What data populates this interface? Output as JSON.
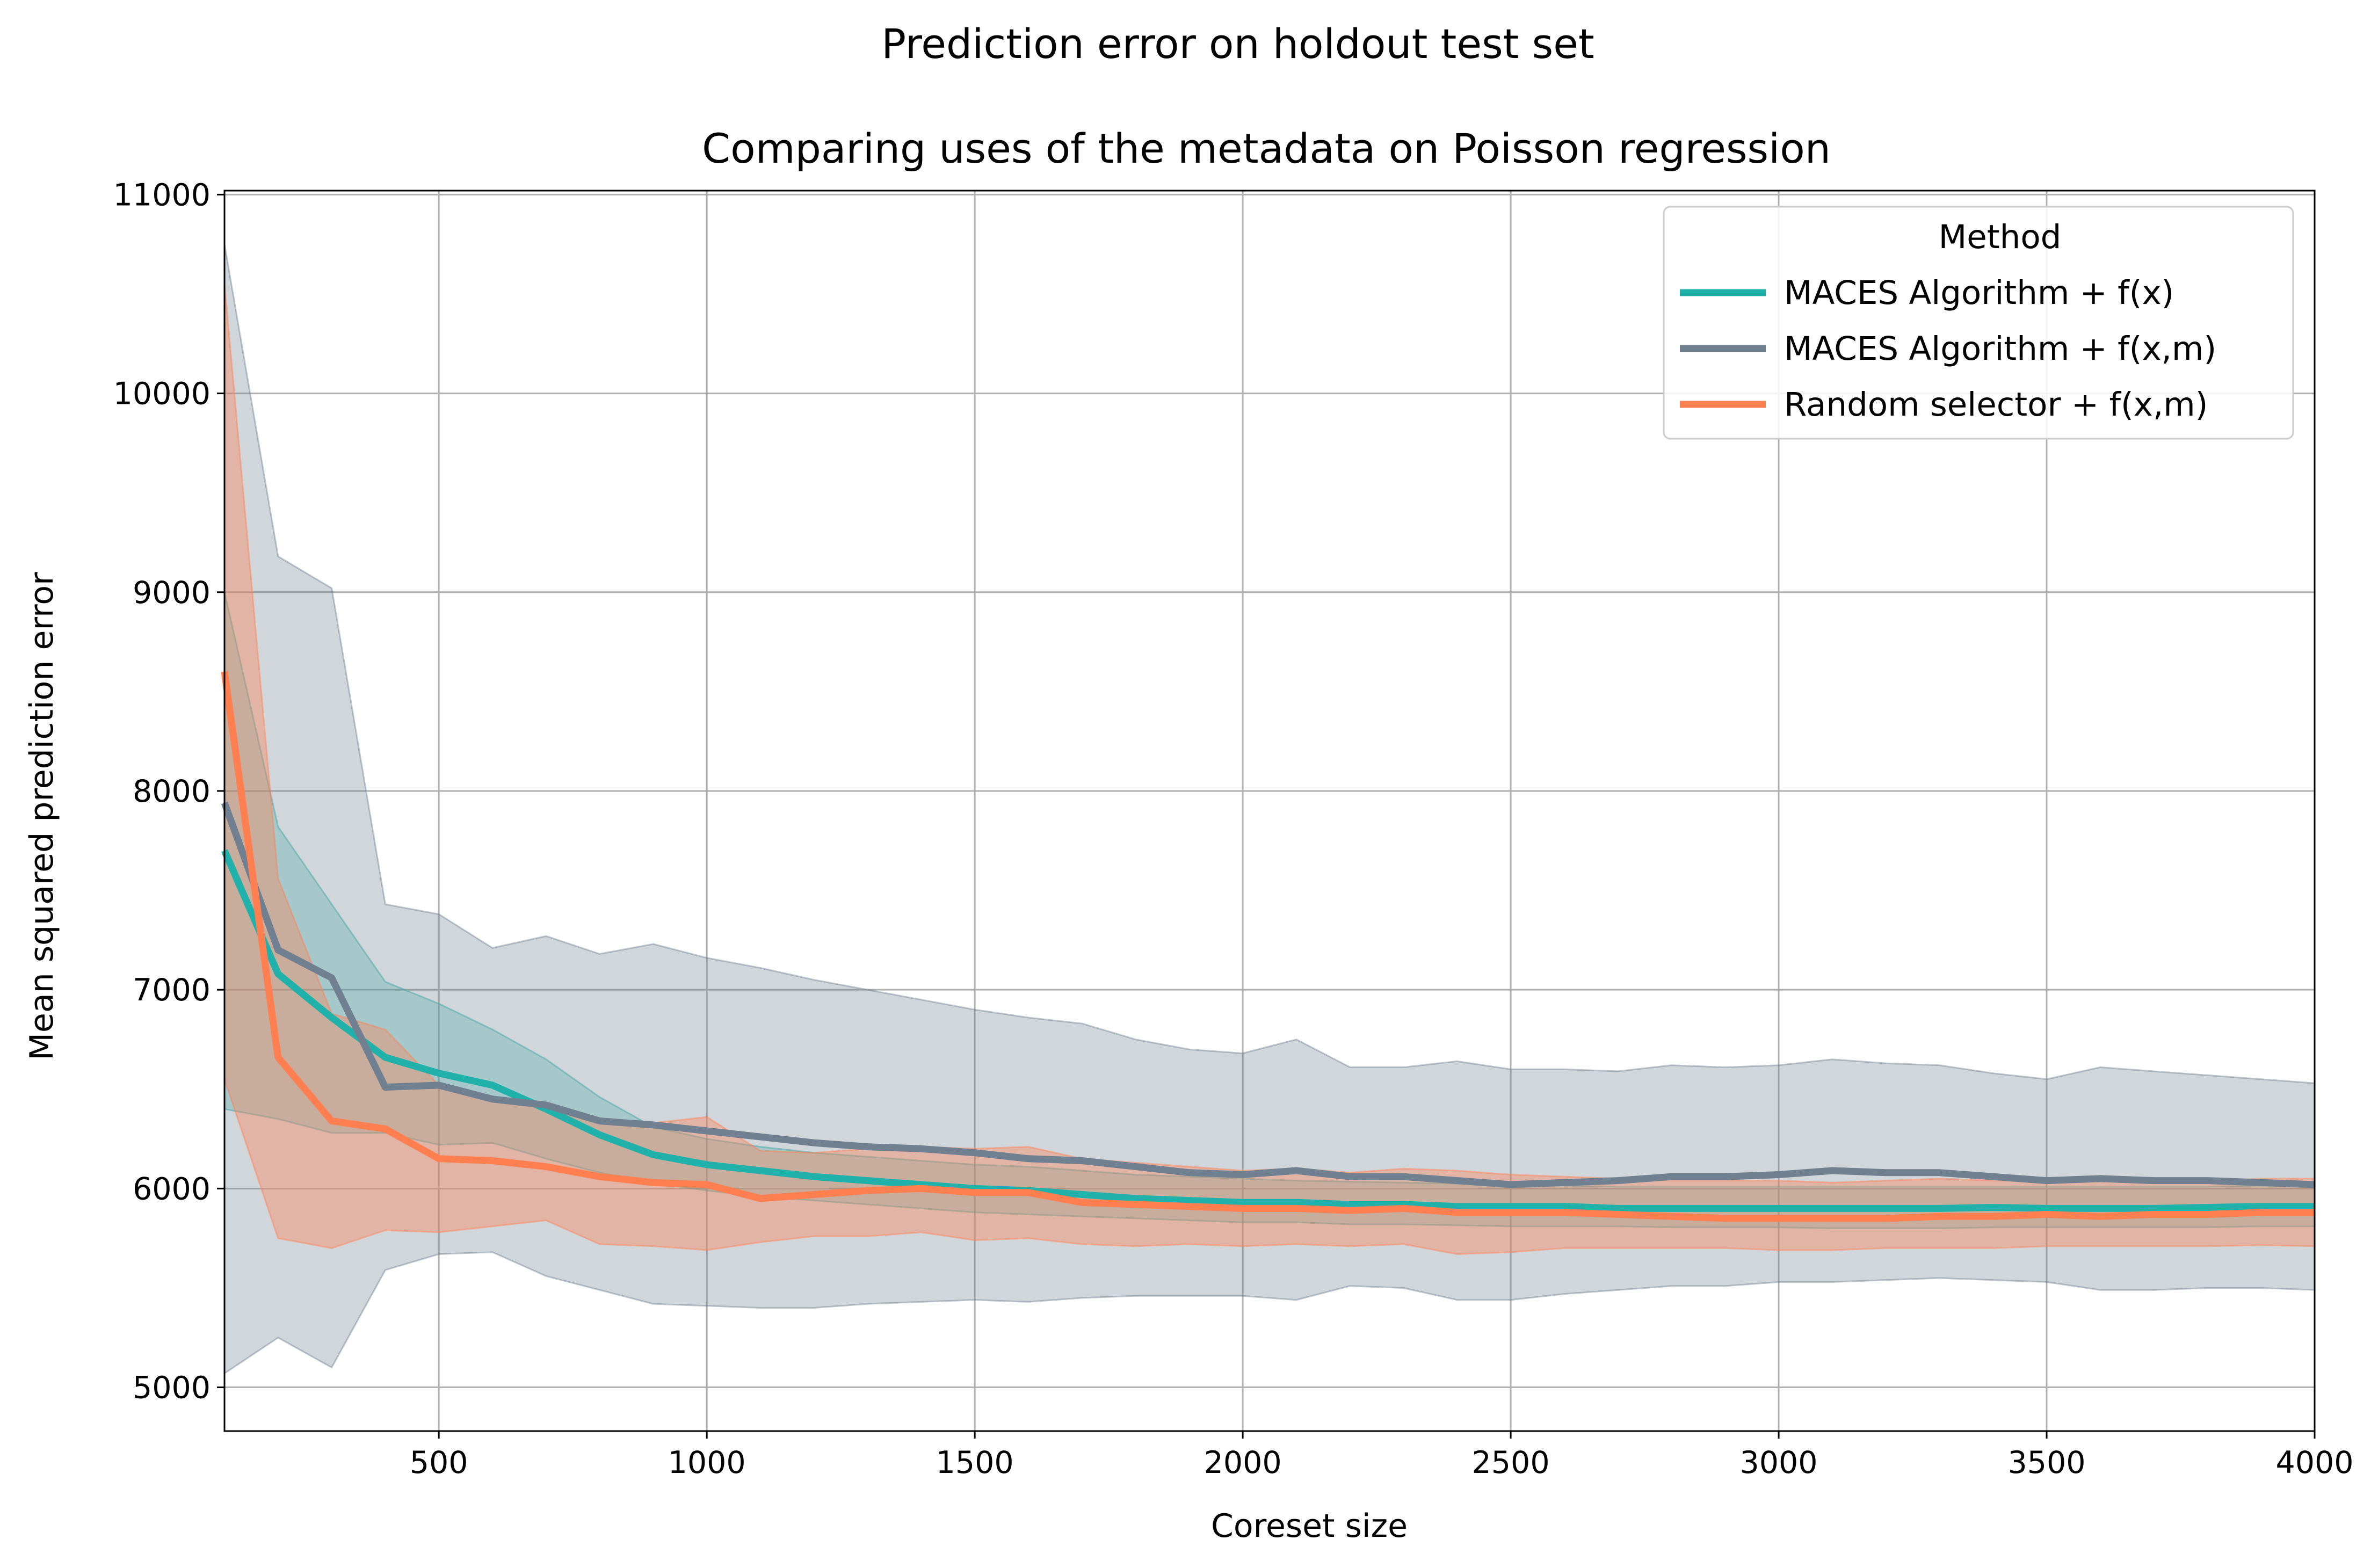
{
  "chart_data": {
    "type": "line",
    "suptitle": "Prediction error on holdout test set",
    "title": "Comparing uses of the metadata on Poisson regression",
    "xlabel": "Coreset size",
    "ylabel": "Mean squared prediction error",
    "xlim": [
      100,
      4000
    ],
    "ylim": [
      4780,
      11020
    ],
    "xticks": [
      500,
      1000,
      1500,
      2000,
      2500,
      3000,
      3500,
      4000
    ],
    "xtick_labels": [
      "500",
      "1000",
      "1500",
      "2000",
      "2500",
      "3000",
      "3500",
      "4000"
    ],
    "yticks": [
      5000,
      6000,
      7000,
      8000,
      9000,
      10000,
      11000
    ],
    "ytick_labels": [
      "5000",
      "6000",
      "7000",
      "8000",
      "9000",
      "10000",
      "11000"
    ],
    "grid": true,
    "legend": {
      "title": "Method",
      "placement": "top-right"
    },
    "x": [
      100,
      200,
      300,
      400,
      500,
      600,
      700,
      800,
      900,
      1000,
      1100,
      1200,
      1300,
      1400,
      1500,
      1600,
      1700,
      1800,
      1900,
      2000,
      2100,
      2200,
      2300,
      2400,
      2500,
      2600,
      2700,
      2800,
      2900,
      3000,
      3100,
      3200,
      3300,
      3400,
      3500,
      3600,
      3700,
      3800,
      3900,
      4000
    ],
    "series": [
      {
        "name": "MACES Algorithm + f(x)",
        "color": "#20b2aa",
        "band_opacity": 0.28,
        "values": [
          7700,
          7080,
          6860,
          6660,
          6580,
          6520,
          6400,
          6270,
          6170,
          6120,
          6090,
          6060,
          6040,
          6020,
          6000,
          5990,
          5970,
          5950,
          5940,
          5930,
          5930,
          5920,
          5920,
          5910,
          5910,
          5910,
          5900,
          5900,
          5900,
          5900,
          5900,
          5900,
          5900,
          5905,
          5900,
          5900,
          5900,
          5905,
          5910,
          5910
        ],
        "lower": [
          6400,
          6350,
          6280,
          6280,
          6220,
          6230,
          6150,
          6080,
          6030,
          5990,
          5960,
          5940,
          5920,
          5900,
          5880,
          5870,
          5860,
          5850,
          5840,
          5830,
          5830,
          5820,
          5820,
          5815,
          5810,
          5810,
          5810,
          5805,
          5805,
          5805,
          5800,
          5800,
          5800,
          5805,
          5805,
          5805,
          5805,
          5805,
          5810,
          5810
        ],
        "upper": [
          9000,
          7820,
          7430,
          7040,
          6930,
          6800,
          6650,
          6460,
          6310,
          6250,
          6210,
          6180,
          6160,
          6140,
          6120,
          6110,
          6090,
          6070,
          6060,
          6050,
          6040,
          6035,
          6030,
          6025,
          6020,
          6015,
          6010,
          6010,
          6010,
          6010,
          6010,
          6010,
          6010,
          6010,
          6010,
          6010,
          6010,
          6010,
          6015,
          6015
        ]
      },
      {
        "name": "MACES Algorithm + f(x,m)",
        "color": "#708090",
        "band_opacity": 0.32,
        "values": [
          7940,
          7200,
          7060,
          6510,
          6520,
          6450,
          6420,
          6340,
          6320,
          6290,
          6260,
          6230,
          6210,
          6200,
          6180,
          6150,
          6140,
          6110,
          6080,
          6070,
          6090,
          6060,
          6060,
          6040,
          6020,
          6030,
          6040,
          6060,
          6060,
          6070,
          6090,
          6080,
          6080,
          6060,
          6040,
          6050,
          6040,
          6040,
          6030,
          6020
        ],
        "lower": [
          5070,
          5250,
          5100,
          5590,
          5670,
          5680,
          5560,
          5490,
          5420,
          5410,
          5400,
          5400,
          5420,
          5430,
          5440,
          5430,
          5450,
          5460,
          5460,
          5460,
          5440,
          5510,
          5500,
          5440,
          5440,
          5470,
          5490,
          5510,
          5510,
          5530,
          5530,
          5540,
          5550,
          5540,
          5530,
          5490,
          5490,
          5500,
          5500,
          5490
        ],
        "upper": [
          10750,
          9180,
          9020,
          7430,
          7380,
          7210,
          7270,
          7180,
          7230,
          7160,
          7110,
          7050,
          7000,
          6950,
          6900,
          6860,
          6830,
          6750,
          6700,
          6680,
          6750,
          6610,
          6610,
          6640,
          6600,
          6600,
          6590,
          6620,
          6610,
          6620,
          6650,
          6630,
          6620,
          6580,
          6550,
          6610,
          6590,
          6570,
          6550,
          6530
        ]
      },
      {
        "name": "Random selector + f(x,m)",
        "color": "#ff7f50",
        "band_opacity": 0.38,
        "values": [
          8600,
          6660,
          6340,
          6300,
          6150,
          6140,
          6110,
          6060,
          6030,
          6020,
          5950,
          5970,
          5990,
          6000,
          5980,
          5980,
          5930,
          5920,
          5910,
          5900,
          5900,
          5890,
          5900,
          5880,
          5880,
          5880,
          5870,
          5860,
          5850,
          5850,
          5850,
          5850,
          5860,
          5860,
          5870,
          5860,
          5870,
          5870,
          5880,
          5880
        ],
        "lower": [
          6550,
          5750,
          5700,
          5790,
          5780,
          5810,
          5840,
          5720,
          5710,
          5690,
          5730,
          5760,
          5760,
          5780,
          5740,
          5750,
          5720,
          5710,
          5720,
          5710,
          5720,
          5710,
          5720,
          5670,
          5680,
          5700,
          5700,
          5700,
          5700,
          5690,
          5690,
          5700,
          5700,
          5700,
          5710,
          5710,
          5710,
          5710,
          5715,
          5710
        ],
        "upper": [
          10550,
          7560,
          6880,
          6800,
          6520,
          6450,
          6400,
          6350,
          6330,
          6360,
          6190,
          6180,
          6200,
          6210,
          6200,
          6210,
          6150,
          6130,
          6110,
          6090,
          6100,
          6080,
          6100,
          6090,
          6070,
          6060,
          6050,
          6040,
          6040,
          6040,
          6030,
          6040,
          6050,
          6040,
          6040,
          6040,
          6030,
          6040,
          6050,
          6050
        ]
      }
    ]
  }
}
